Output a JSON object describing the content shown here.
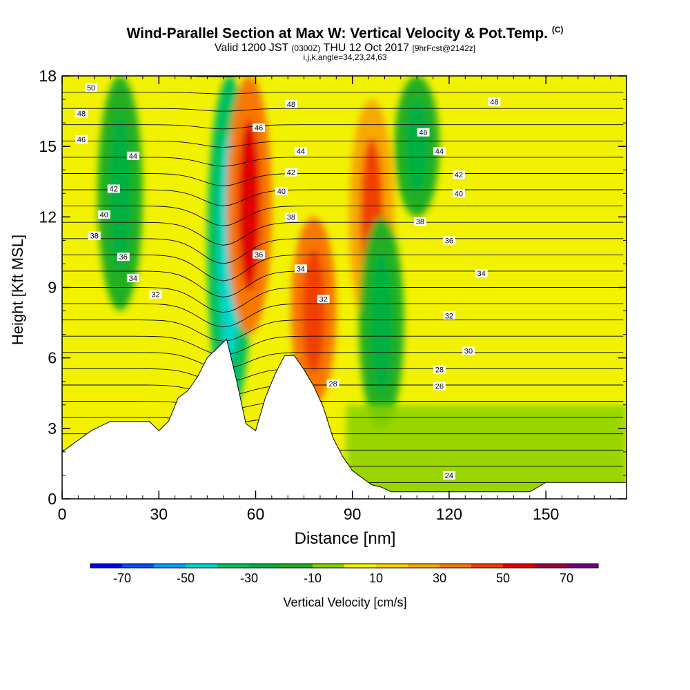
{
  "title": {
    "main": "Wind-Parallel Section at Max W: Vertical Velocity & Pot.Temp.",
    "main_mark": "(C)",
    "valid_prefix": "Valid 1200 JST",
    "valid_z": "(0300Z)",
    "valid_date": "THU 12 Oct 2017",
    "forecast": "[9hrFcst@2142z]",
    "indices": "i,j,k,angle=34,23,24,63"
  },
  "chart_data": {
    "type": "heatmap",
    "xlabel": "Distance [nm]",
    "ylabel": "Height [Kft MSL]",
    "xlim": [
      0,
      175
    ],
    "ylim": [
      0,
      18
    ],
    "x_ticks": [
      "0",
      "30",
      "60",
      "90",
      "120",
      "150"
    ],
    "x_tick_values": [
      0,
      30,
      60,
      90,
      120,
      150
    ],
    "y_ticks": [
      "0",
      "3",
      "6",
      "9",
      "12",
      "15",
      "18"
    ],
    "y_tick_values": [
      0,
      3,
      6,
      9,
      12,
      15,
      18
    ],
    "colorbar": {
      "label": "Vertical Velocity [cm/s]",
      "range": [
        -80,
        80
      ],
      "step": 10,
      "tick_labels": [
        "-70",
        "-50",
        "-30",
        "-10",
        "10",
        "30",
        "50",
        "70"
      ],
      "tick_values": [
        -70,
        -50,
        -30,
        -10,
        10,
        30,
        50,
        70
      ],
      "colors": [
        "#0000ee",
        "#0050f0",
        "#00a0ff",
        "#00d6cc",
        "#00c060",
        "#00b040",
        "#20b020",
        "#8ad200",
        "#f2f200",
        "#f8d200",
        "#f8a800",
        "#f87800",
        "#f04000",
        "#e00000",
        "#a00040",
        "#700080"
      ]
    },
    "terrain_profile": {
      "x": [
        0,
        3,
        6,
        9,
        12,
        15,
        18,
        21,
        24,
        27,
        30,
        33,
        36,
        39,
        42,
        45,
        48,
        51,
        54,
        57,
        60,
        63,
        66,
        69,
        72,
        75,
        78,
        81,
        84,
        87,
        90,
        93,
        96,
        99,
        102,
        105,
        108,
        111,
        114,
        117,
        120,
        130,
        135,
        140,
        145,
        150,
        160,
        175
      ],
      "y": [
        2.0,
        2.3,
        2.6,
        2.9,
        3.1,
        3.3,
        3.3,
        3.3,
        3.3,
        3.3,
        2.9,
        3.3,
        4.3,
        4.6,
        5.2,
        6.0,
        6.4,
        6.8,
        5.1,
        3.2,
        2.9,
        4.3,
        5.3,
        6.1,
        6.1,
        5.5,
        4.8,
        3.9,
        2.6,
        1.8,
        1.2,
        0.9,
        0.6,
        0.5,
        0.3,
        0.3,
        0.3,
        0.3,
        0.3,
        0.3,
        0.3,
        0.3,
        0.3,
        0.3,
        0.3,
        0.7,
        0.7,
        0.7
      ]
    },
    "velocity_features": [
      {
        "x": 52,
        "y0": 3.5,
        "y1": 18,
        "w": -40,
        "note": "downdraft column"
      },
      {
        "x": 58,
        "y0": 7,
        "y1": 18,
        "w": 35
      },
      {
        "x": 78,
        "y0": 4,
        "y1": 12,
        "w": 30
      },
      {
        "x": 96,
        "y0": 7,
        "y1": 17,
        "w": 25
      },
      {
        "x": 99,
        "y0": 3,
        "y1": 12,
        "w": -20
      },
      {
        "x": 110,
        "y0": 12,
        "y1": 18,
        "w": -20
      },
      {
        "x": 18,
        "y0": 8,
        "y1": 18,
        "w": -15
      }
    ],
    "isentropes": {
      "units": "C",
      "levels": [
        24,
        25,
        26,
        27,
        28,
        29,
        30,
        31,
        32,
        33,
        34,
        35,
        36,
        37,
        38,
        39,
        40,
        41,
        42,
        43,
        44,
        45,
        46,
        47,
        48,
        49,
        50
      ],
      "labels": [
        {
          "text": "50",
          "x": 9,
          "y": 17.5
        },
        {
          "text": "48",
          "x": 6,
          "y": 16.4
        },
        {
          "text": "46",
          "x": 6,
          "y": 15.3
        },
        {
          "text": "44",
          "x": 22,
          "y": 14.6
        },
        {
          "text": "42",
          "x": 16,
          "y": 13.2
        },
        {
          "text": "40",
          "x": 13,
          "y": 12.1
        },
        {
          "text": "38",
          "x": 10,
          "y": 11.2
        },
        {
          "text": "36",
          "x": 19,
          "y": 10.3
        },
        {
          "text": "34",
          "x": 22,
          "y": 9.4
        },
        {
          "text": "32",
          "x": 29,
          "y": 8.7
        },
        {
          "text": "48",
          "x": 71,
          "y": 16.8
        },
        {
          "text": "46",
          "x": 61,
          "y": 15.8
        },
        {
          "text": "44",
          "x": 74,
          "y": 14.8
        },
        {
          "text": "42",
          "x": 71,
          "y": 13.9
        },
        {
          "text": "40",
          "x": 68,
          "y": 13.1
        },
        {
          "text": "38",
          "x": 71,
          "y": 12.0
        },
        {
          "text": "36",
          "x": 61,
          "y": 10.4
        },
        {
          "text": "34",
          "x": 74,
          "y": 9.8
        },
        {
          "text": "32",
          "x": 81,
          "y": 8.5
        },
        {
          "text": "28",
          "x": 84,
          "y": 4.9
        },
        {
          "text": "48",
          "x": 134,
          "y": 16.9
        },
        {
          "text": "46",
          "x": 112,
          "y": 15.6
        },
        {
          "text": "44",
          "x": 117,
          "y": 14.8
        },
        {
          "text": "42",
          "x": 123,
          "y": 13.8
        },
        {
          "text": "40",
          "x": 123,
          "y": 13.0
        },
        {
          "text": "38",
          "x": 111,
          "y": 11.8
        },
        {
          "text": "36",
          "x": 120,
          "y": 11.0
        },
        {
          "text": "34",
          "x": 130,
          "y": 9.6
        },
        {
          "text": "32",
          "x": 120,
          "y": 7.8
        },
        {
          "text": "30",
          "x": 126,
          "y": 6.3
        },
        {
          "text": "28",
          "x": 117,
          "y": 5.5
        },
        {
          "text": "26",
          "x": 117,
          "y": 4.8
        },
        {
          "text": "24",
          "x": 120,
          "y": 1.0
        }
      ]
    }
  }
}
